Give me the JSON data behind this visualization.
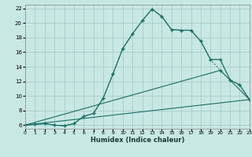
{
  "xlabel": "Humidex (Indice chaleur)",
  "background_color": "#c8e8e4",
  "grid_color": "#a8ccc8",
  "line_color": "#1a6e64",
  "xlim": [
    0,
    23
  ],
  "ylim": [
    5.5,
    22.5
  ],
  "xticks": [
    0,
    1,
    2,
    3,
    4,
    5,
    6,
    7,
    8,
    9,
    10,
    11,
    12,
    13,
    14,
    15,
    16,
    17,
    18,
    19,
    20,
    21,
    22,
    23
  ],
  "yticks": [
    6,
    8,
    10,
    12,
    14,
    16,
    18,
    20,
    22
  ],
  "curve1_x": [
    0,
    1,
    2,
    3,
    4,
    5,
    6,
    7,
    8,
    9,
    10,
    11,
    12,
    13,
    14,
    15,
    16,
    17,
    18,
    19,
    20,
    21,
    22,
    23
  ],
  "curve1_y": [
    6.0,
    6.1,
    6.2,
    6.0,
    5.9,
    6.2,
    7.2,
    7.6,
    9.7,
    13.0,
    16.5,
    18.5,
    20.3,
    21.9,
    20.9,
    19.1,
    19.0,
    19.0,
    17.5,
    15.0,
    15.0,
    12.2,
    11.5,
    9.5
  ],
  "curve2_x": [
    0,
    1,
    2,
    3,
    4,
    5,
    6,
    7,
    8,
    9,
    10,
    11,
    12,
    13,
    14,
    15,
    16,
    17,
    18,
    19,
    20,
    21,
    22,
    23
  ],
  "curve2_y": [
    6.0,
    6.1,
    6.2,
    6.0,
    5.9,
    6.2,
    7.2,
    7.6,
    9.7,
    13.0,
    16.5,
    18.5,
    20.3,
    21.9,
    20.9,
    19.1,
    19.0,
    19.0,
    17.5,
    15.0,
    13.5,
    12.2,
    11.5,
    9.5
  ],
  "line3_x": [
    0,
    23
  ],
  "line3_y": [
    6.0,
    9.5
  ],
  "line4_x": [
    0,
    20,
    23
  ],
  "line4_y": [
    6.0,
    13.5,
    9.5
  ]
}
